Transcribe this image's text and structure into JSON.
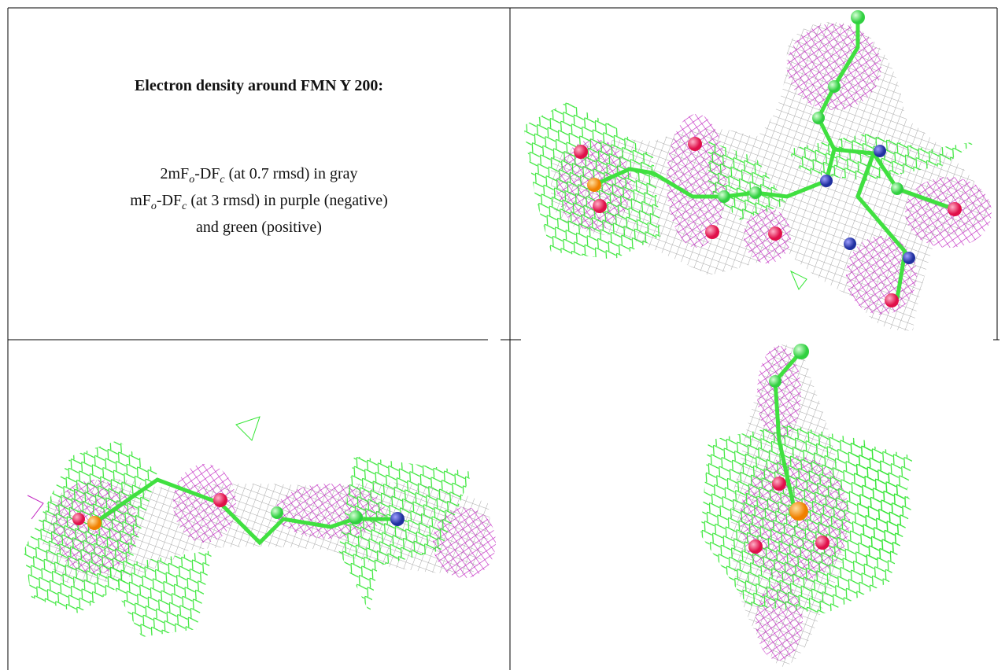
{
  "caption": {
    "title": "Electron density around FMN Y 200:",
    "lines": [
      [
        "2mF",
        "o",
        "-DF",
        "c",
        " (at 0.7 rmsd) in gray"
      ],
      [
        "mF",
        "o",
        "-DF",
        "c",
        " (at 3 rmsd) in purple (negative)"
      ],
      [
        "and green (positive)"
      ]
    ]
  }
}
